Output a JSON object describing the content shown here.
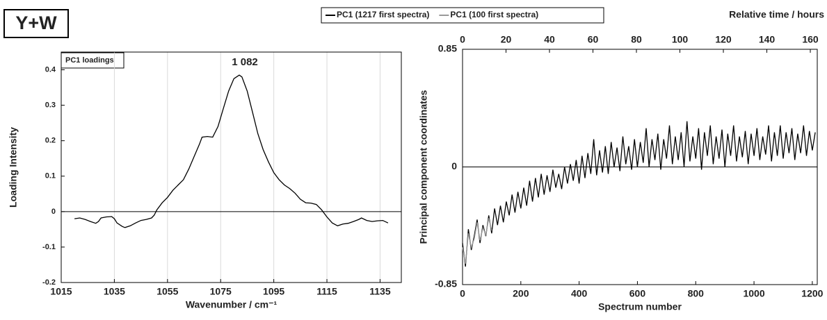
{
  "panel_label": "Y+W",
  "chart_data": [
    {
      "type": "line",
      "x_label": "Wavenumber / cm⁻¹",
      "y_label": "Loading Intensity",
      "annotations": [
        "PC1 loadings",
        "1 082"
      ],
      "xlim": [
        1015,
        1143
      ],
      "xticks": [
        1015,
        1035,
        1055,
        1075,
        1095,
        1115,
        1135
      ],
      "ylim": [
        -0.2,
        0.45
      ],
      "yticks": [
        -0.2,
        -0.1,
        0,
        0.1,
        0.2,
        0.3,
        0.4
      ],
      "grid": "x",
      "x": [
        1020,
        1022,
        1024,
        1026,
        1028,
        1029,
        1030,
        1032,
        1034,
        1035,
        1036,
        1038,
        1039,
        1041,
        1043,
        1045,
        1047,
        1049,
        1050,
        1051,
        1053,
        1055,
        1057,
        1059,
        1061,
        1063,
        1065,
        1067,
        1068,
        1070,
        1072,
        1074,
        1076,
        1078,
        1080,
        1082,
        1083,
        1085,
        1087,
        1089,
        1091,
        1093,
        1095,
        1097,
        1099,
        1101,
        1103,
        1105,
        1107,
        1109,
        1111,
        1113,
        1115,
        1117,
        1119,
        1121,
        1123,
        1125,
        1127,
        1128,
        1130,
        1132,
        1134,
        1136,
        1138
      ],
      "series": [
        {
          "color": "#000000",
          "values": [
            -0.02,
            -0.018,
            -0.022,
            -0.028,
            -0.033,
            -0.028,
            -0.018,
            -0.015,
            -0.014,
            -0.02,
            -0.032,
            -0.042,
            -0.045,
            -0.04,
            -0.032,
            -0.025,
            -0.022,
            -0.018,
            -0.01,
            0.005,
            0.025,
            0.04,
            0.06,
            0.075,
            0.09,
            0.12,
            0.155,
            0.19,
            0.21,
            0.212,
            0.21,
            0.24,
            0.29,
            0.34,
            0.375,
            0.385,
            0.38,
            0.34,
            0.28,
            0.22,
            0.175,
            0.14,
            0.11,
            0.09,
            0.075,
            0.065,
            0.052,
            0.035,
            0.025,
            0.024,
            0.02,
            0.005,
            -0.015,
            -0.032,
            -0.04,
            -0.035,
            -0.033,
            -0.028,
            -0.022,
            -0.018,
            -0.025,
            -0.028,
            -0.026,
            -0.025,
            -0.032
          ]
        }
      ]
    },
    {
      "type": "line",
      "x_label": "Spectrum number",
      "y_label": "Principal component coordinates",
      "x2_label": "Relative time / hours",
      "xlim": [
        0,
        1217
      ],
      "xticks": [
        0,
        200,
        400,
        600,
        800,
        1000,
        1200
      ],
      "x2lim": [
        0,
        163.2
      ],
      "x2ticks": [
        0,
        20,
        40,
        60,
        80,
        100,
        120,
        140,
        160
      ],
      "ylim": [
        -0.85,
        0.85
      ],
      "yticks": [
        -0.85,
        0,
        0.85
      ],
      "series": [
        {
          "name": "PC1 (1217 first spectra)",
          "color": "#000000",
          "x": [
            0,
            10,
            20,
            30,
            40,
            50,
            60,
            70,
            80,
            90,
            100,
            110,
            120,
            130,
            140,
            150,
            160,
            170,
            180,
            190,
            200,
            210,
            220,
            230,
            240,
            250,
            260,
            270,
            280,
            290,
            300,
            310,
            320,
            330,
            340,
            350,
            360,
            370,
            380,
            390,
            400,
            410,
            420,
            430,
            440,
            450,
            460,
            470,
            480,
            490,
            500,
            510,
            520,
            530,
            540,
            550,
            560,
            570,
            580,
            590,
            600,
            610,
            620,
            630,
            640,
            650,
            660,
            670,
            680,
            690,
            700,
            710,
            720,
            730,
            740,
            750,
            760,
            770,
            780,
            790,
            800,
            810,
            820,
            830,
            840,
            850,
            860,
            870,
            880,
            890,
            900,
            910,
            920,
            930,
            940,
            950,
            960,
            970,
            980,
            990,
            1000,
            1010,
            1020,
            1030,
            1040,
            1050,
            1060,
            1070,
            1080,
            1090,
            1100,
            1110,
            1120,
            1130,
            1140,
            1150,
            1160,
            1170,
            1180,
            1190,
            1200,
            1210
          ],
          "values": [
            -0.55,
            -0.72,
            -0.45,
            -0.6,
            -0.5,
            -0.38,
            -0.55,
            -0.42,
            -0.5,
            -0.35,
            -0.48,
            -0.3,
            -0.42,
            -0.28,
            -0.4,
            -0.25,
            -0.35,
            -0.2,
            -0.33,
            -0.18,
            -0.3,
            -0.15,
            -0.28,
            -0.1,
            -0.25,
            -0.08,
            -0.22,
            -0.05,
            -0.2,
            -0.06,
            -0.18,
            -0.02,
            -0.15,
            -0.05,
            -0.16,
            0.0,
            -0.12,
            0.02,
            -0.1,
            0.05,
            -0.12,
            0.08,
            -0.08,
            0.1,
            -0.05,
            0.2,
            -0.06,
            0.12,
            -0.04,
            0.15,
            -0.05,
            0.18,
            0.0,
            0.14,
            -0.03,
            0.22,
            0.02,
            0.15,
            -0.02,
            0.2,
            0.0,
            0.18,
            0.03,
            0.28,
            0.0,
            0.2,
            0.05,
            0.24,
            -0.02,
            0.2,
            0.06,
            0.3,
            0.02,
            0.22,
            0.05,
            0.25,
            0.0,
            0.33,
            0.04,
            0.22,
            0.06,
            0.28,
            -0.02,
            0.25,
            0.08,
            0.3,
            0.02,
            0.22,
            0.06,
            0.27,
            0.0,
            0.24,
            0.08,
            0.3,
            0.04,
            0.22,
            0.07,
            0.26,
            0.02,
            0.24,
            0.08,
            0.28,
            0.05,
            0.22,
            0.09,
            0.3,
            0.04,
            0.25,
            0.08,
            0.3,
            0.06,
            0.25,
            0.1,
            0.28,
            0.05,
            0.24,
            0.1,
            0.3,
            0.08,
            0.26,
            0.12,
            0.25
          ]
        },
        {
          "name": "PC1 (100 first spectra)",
          "color": "#999999",
          "x": [
            0,
            10,
            20,
            30,
            40,
            50,
            60,
            70,
            80,
            90,
            100
          ],
          "values": [
            -0.58,
            -0.7,
            -0.48,
            -0.58,
            -0.52,
            -0.4,
            -0.53,
            -0.44,
            -0.49,
            -0.37,
            -0.46
          ]
        }
      ]
    }
  ]
}
